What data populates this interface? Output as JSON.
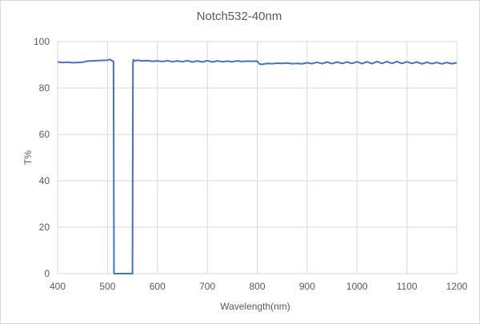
{
  "chart_data": {
    "type": "line",
    "title": "Notch532-40nm",
    "xlabel": "Wavelength(nm)",
    "ylabel": "T%",
    "xlim": [
      400,
      1200
    ],
    "ylim": [
      0,
      100
    ],
    "xticks": [
      400,
      500,
      600,
      700,
      800,
      900,
      1000,
      1100,
      1200
    ],
    "yticks": [
      0,
      20,
      40,
      60,
      80,
      100
    ],
    "grid": true,
    "line_color": "#4472c4",
    "series": [
      {
        "x": [
          400,
          410,
          420,
          430,
          440,
          450,
          460,
          470,
          480,
          490,
          500,
          505,
          510,
          512,
          513,
          550,
          551,
          552,
          556,
          560,
          570,
          580,
          590,
          600,
          610,
          620,
          630,
          640,
          650,
          660,
          670,
          680,
          690,
          700,
          710,
          720,
          730,
          740,
          750,
          760,
          770,
          780,
          790,
          800,
          805,
          810,
          820,
          830,
          840,
          850,
          860,
          870,
          880,
          890,
          900,
          910,
          920,
          930,
          940,
          950,
          960,
          970,
          980,
          990,
          1000,
          1010,
          1020,
          1030,
          1040,
          1050,
          1060,
          1070,
          1080,
          1090,
          1100,
          1110,
          1120,
          1130,
          1140,
          1150,
          1160,
          1170,
          1180,
          1190,
          1200
        ],
        "y": [
          91.2,
          91.0,
          91.1,
          90.9,
          91.0,
          91.1,
          91.6,
          91.7,
          91.8,
          91.9,
          92.0,
          92.3,
          91.6,
          91.5,
          0,
          0,
          91.0,
          92.2,
          91.6,
          92.0,
          91.7,
          91.8,
          91.5,
          91.7,
          91.4,
          91.8,
          91.3,
          91.7,
          91.3,
          91.8,
          91.2,
          91.7,
          91.2,
          91.8,
          91.2,
          91.7,
          91.3,
          91.6,
          91.3,
          91.7,
          91.4,
          91.6,
          91.5,
          91.6,
          90.3,
          90.2,
          90.6,
          90.5,
          90.7,
          90.6,
          90.8,
          90.5,
          90.6,
          90.4,
          90.9,
          90.5,
          91.1,
          90.5,
          91.2,
          90.5,
          91.2,
          90.6,
          91.2,
          90.6,
          91.3,
          90.5,
          91.3,
          90.5,
          91.4,
          90.6,
          91.4,
          90.6,
          91.4,
          90.6,
          91.3,
          90.6,
          91.2,
          90.4,
          91.1,
          90.5,
          91.0,
          90.4,
          91.0,
          90.5,
          90.9
        ]
      }
    ]
  }
}
